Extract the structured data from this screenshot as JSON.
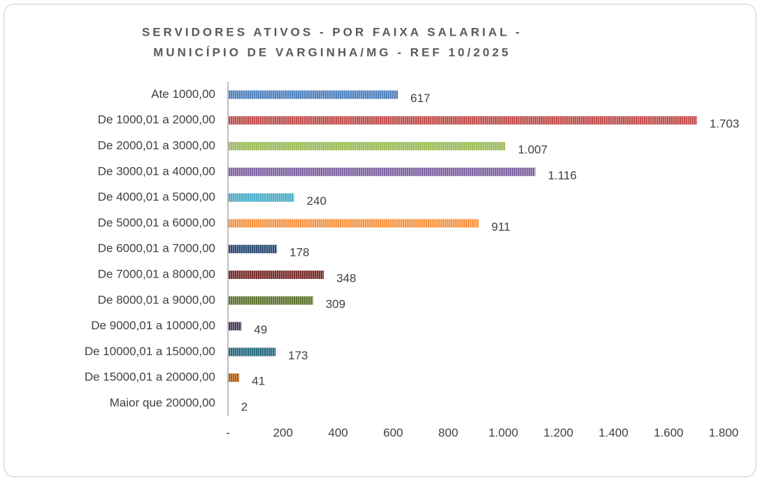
{
  "chart_data": {
    "type": "hbar",
    "title": [
      "SERVIDORES ATIVOS - POR FAIXA SALARIAL -",
      "MUNICÍPIO DE VARGINHA/MG - REF 10/2025"
    ],
    "categories": [
      "Ate 1000,00",
      "De 1000,01 a 2000,00",
      "De 2000,01 a 3000,00",
      "De 3000,01 a 4000,00",
      "De 4000,01 a 5000,00",
      "De 5000,01 a 6000,00",
      "De 6000,01 a 7000,00",
      "De 7000,01 a 8000,00",
      "De 8000,01 a 9000,00",
      "De 9000,01 a 10000,00",
      "De 10000,01 a 15000,00",
      "De 15000,01 a 20000,00",
      "Maior que 20000,00"
    ],
    "values": [
      617,
      1703,
      1007,
      1116,
      240,
      911,
      178,
      348,
      309,
      49,
      173,
      41,
      2
    ],
    "value_labels": [
      "617",
      "1.703",
      "1.007",
      "1.116",
      "240",
      "911",
      "178",
      "348",
      "309",
      "49",
      "173",
      "41",
      "2"
    ],
    "colors": [
      "#4f81bd",
      "#c0504d",
      "#9bbb59",
      "#8064a2",
      "#4bacc6",
      "#f79646",
      "#2c4d75",
      "#772c2a",
      "#5f7530",
      "#4d3b62",
      "#276a7c",
      "#b65708",
      "#729aca"
    ],
    "xlim": [
      0,
      1800
    ],
    "xticks": [
      {
        "value": 0,
        "label": "-"
      },
      200,
      400,
      600,
      800,
      {
        "value": 1000,
        "label": "1.000"
      },
      {
        "value": 1200,
        "label": "1.200"
      },
      {
        "value": 1400,
        "label": "1.400"
      },
      {
        "value": 1600,
        "label": "1.600"
      },
      {
        "value": 1800,
        "label": "1.800"
      }
    ]
  }
}
